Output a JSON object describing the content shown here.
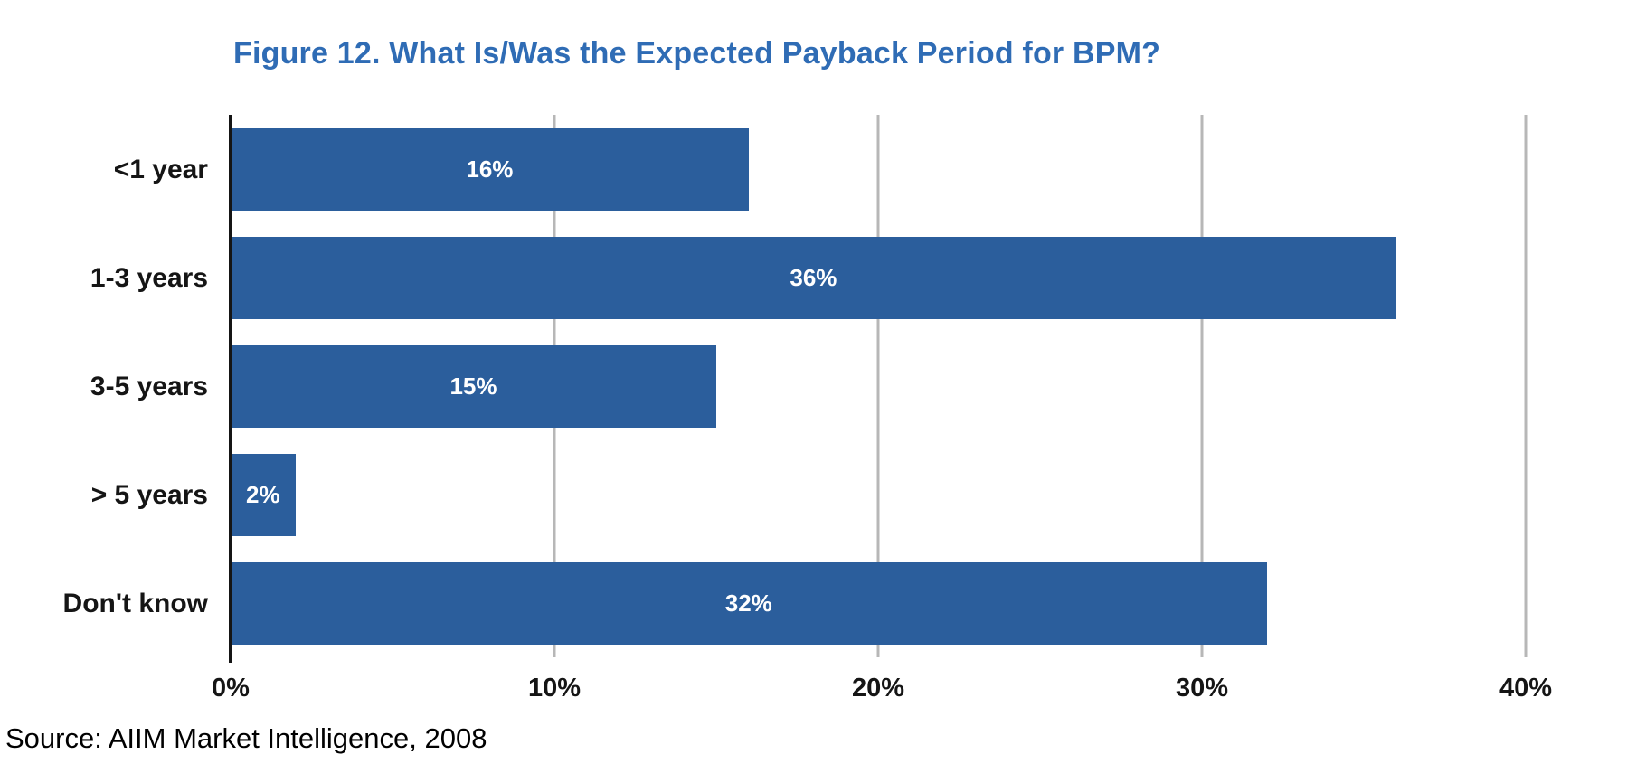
{
  "chart_data": {
    "type": "bar",
    "orientation": "horizontal",
    "title": "Figure 12. What Is/Was the Expected Payback Period for BPM?",
    "categories": [
      "<1 year",
      "1-3 years",
      "3-5 years",
      "> 5 years",
      "Don't know"
    ],
    "values": [
      16,
      36,
      15,
      2,
      32
    ],
    "value_labels": [
      "16%",
      "36%",
      "15%",
      "2%",
      "32%"
    ],
    "xlim": [
      0,
      40
    ],
    "x_ticks": [
      {
        "value": 0,
        "label": "0%"
      },
      {
        "value": 10,
        "label": "10%"
      },
      {
        "value": 20,
        "label": "20%"
      },
      {
        "value": 30,
        "label": "30%"
      },
      {
        "value": 40,
        "label": "40%"
      }
    ],
    "xlabel": "",
    "ylabel": "",
    "legend": "none",
    "grid": "vertical-gridlines"
  },
  "source": "Source: AIIM Market Intelligence, 2008",
  "colors": {
    "bar": "#2b5e9c",
    "title": "#2f6cb5",
    "gridline": "#b7b7b7",
    "axis": "#151515",
    "category_text": "#151515",
    "tick_text": "#151515",
    "value_text": "#ffffff",
    "source_text": "#000000",
    "background": "#ffffff"
  }
}
